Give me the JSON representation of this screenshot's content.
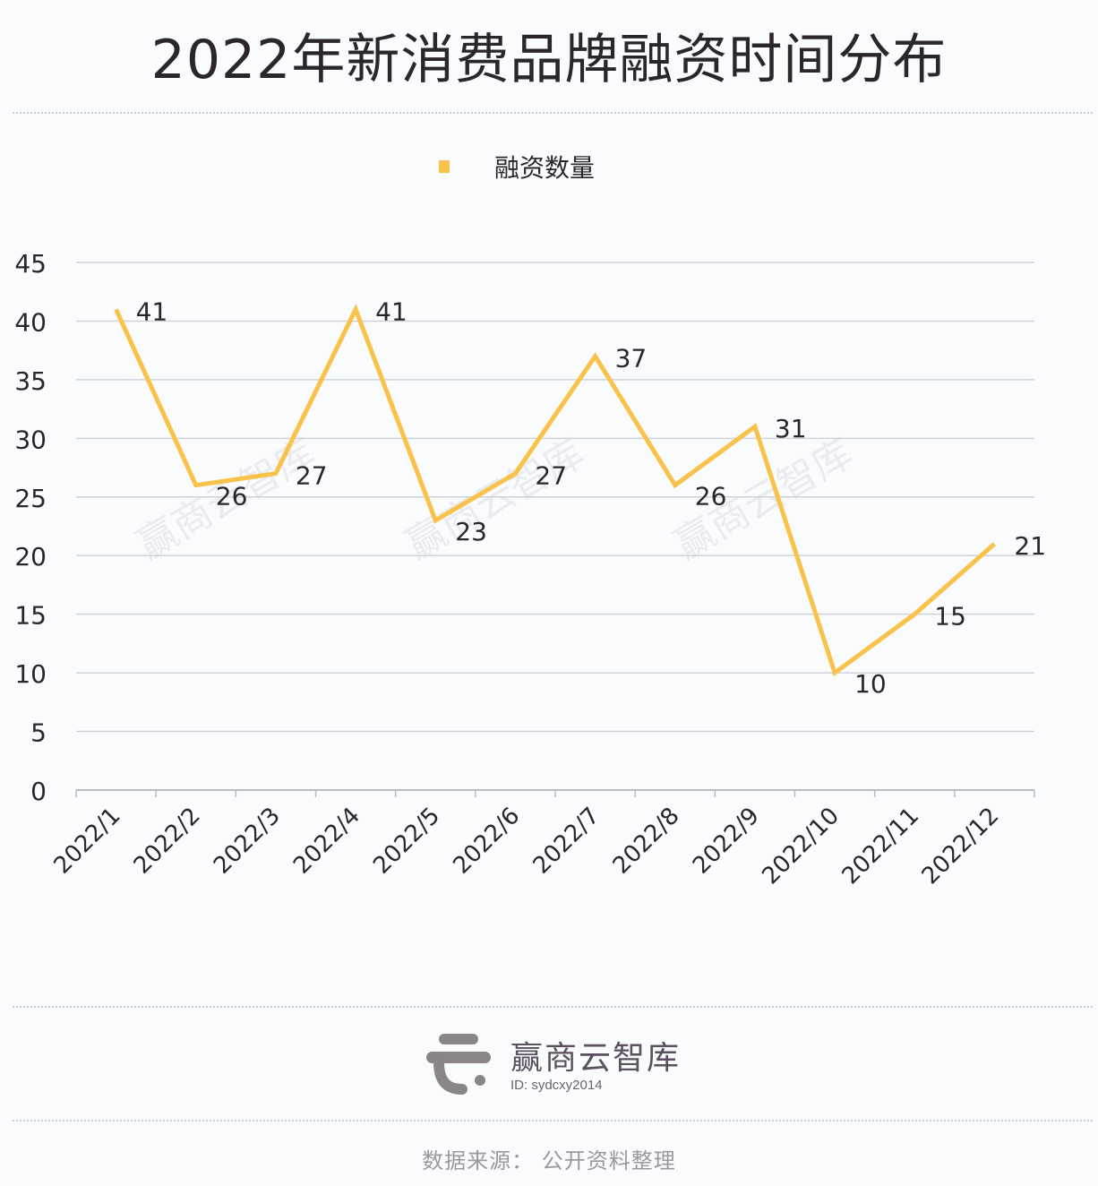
{
  "title": "2022年新消费品牌融资时间分布",
  "legend": {
    "label": "融资数量",
    "color": "#f8c24b"
  },
  "watermark": "赢商云智库",
  "footer": {
    "brand": "赢商云智库",
    "id": "ID: sydcxy2014",
    "source": "数据来源： 公开资料整理"
  },
  "chart_data": {
    "type": "line",
    "title": "2022年新消费品牌融资时间分布",
    "xlabel": "",
    "ylabel": "",
    "categories": [
      "2022/1",
      "2022/2",
      "2022/3",
      "2022/4",
      "2022/5",
      "2022/6",
      "2022/7",
      "2022/8",
      "2022/9",
      "2022/10",
      "2022/11",
      "2022/12"
    ],
    "series": [
      {
        "name": "融资数量",
        "color": "#f8c24b",
        "values": [
          41,
          26,
          27,
          41,
          23,
          27,
          37,
          26,
          31,
          10,
          15,
          21
        ]
      }
    ],
    "ylim": [
      0,
      45
    ],
    "yticks": [
      0,
      5,
      10,
      15,
      20,
      25,
      30,
      35,
      40,
      45
    ],
    "grid": true,
    "legend_position": "top",
    "data_labels": true
  }
}
